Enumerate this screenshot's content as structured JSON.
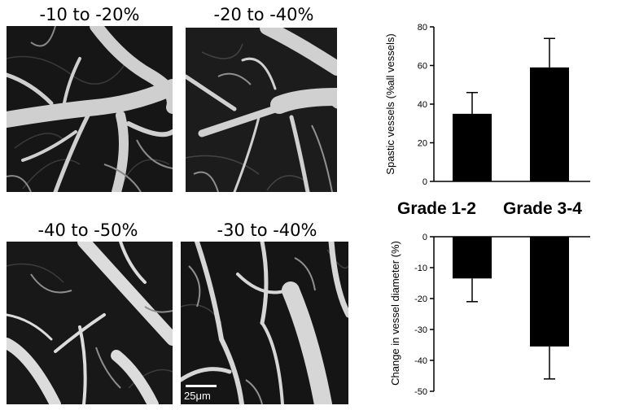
{
  "micrographs": [
    {
      "label": "-10 to -20%"
    },
    {
      "label": "-20 to -40%"
    },
    {
      "label": "-40 to -50%"
    },
    {
      "label": "-30 to -40%"
    }
  ],
  "scale_bar": {
    "label": "25μm"
  },
  "chart_data": [
    {
      "type": "bar",
      "categories": [
        "Grade 1-2",
        "Grade 3-4"
      ],
      "values": [
        35,
        59
      ],
      "error": [
        11,
        15
      ],
      "title": "",
      "xlabel": "",
      "ylabel": "Spastic vessels (%all vessels)",
      "ylim": [
        0,
        80
      ],
      "yticks": [
        "0",
        "20",
        "40",
        "60",
        "80"
      ],
      "bar_color": "#000000",
      "grid": false
    },
    {
      "type": "bar",
      "categories": [
        "Grade 1-2",
        "Grade 3-4"
      ],
      "values": [
        -13.5,
        -35.5
      ],
      "error": [
        7.5,
        10.5
      ],
      "title": "",
      "xlabel": "",
      "ylabel": "Change in vessel diameter (%)",
      "ylim": [
        -50,
        0
      ],
      "yticks": [
        "0",
        "-10",
        "-20",
        "-30",
        "-40",
        "-50"
      ],
      "bar_color": "#000000",
      "grid": false
    }
  ]
}
